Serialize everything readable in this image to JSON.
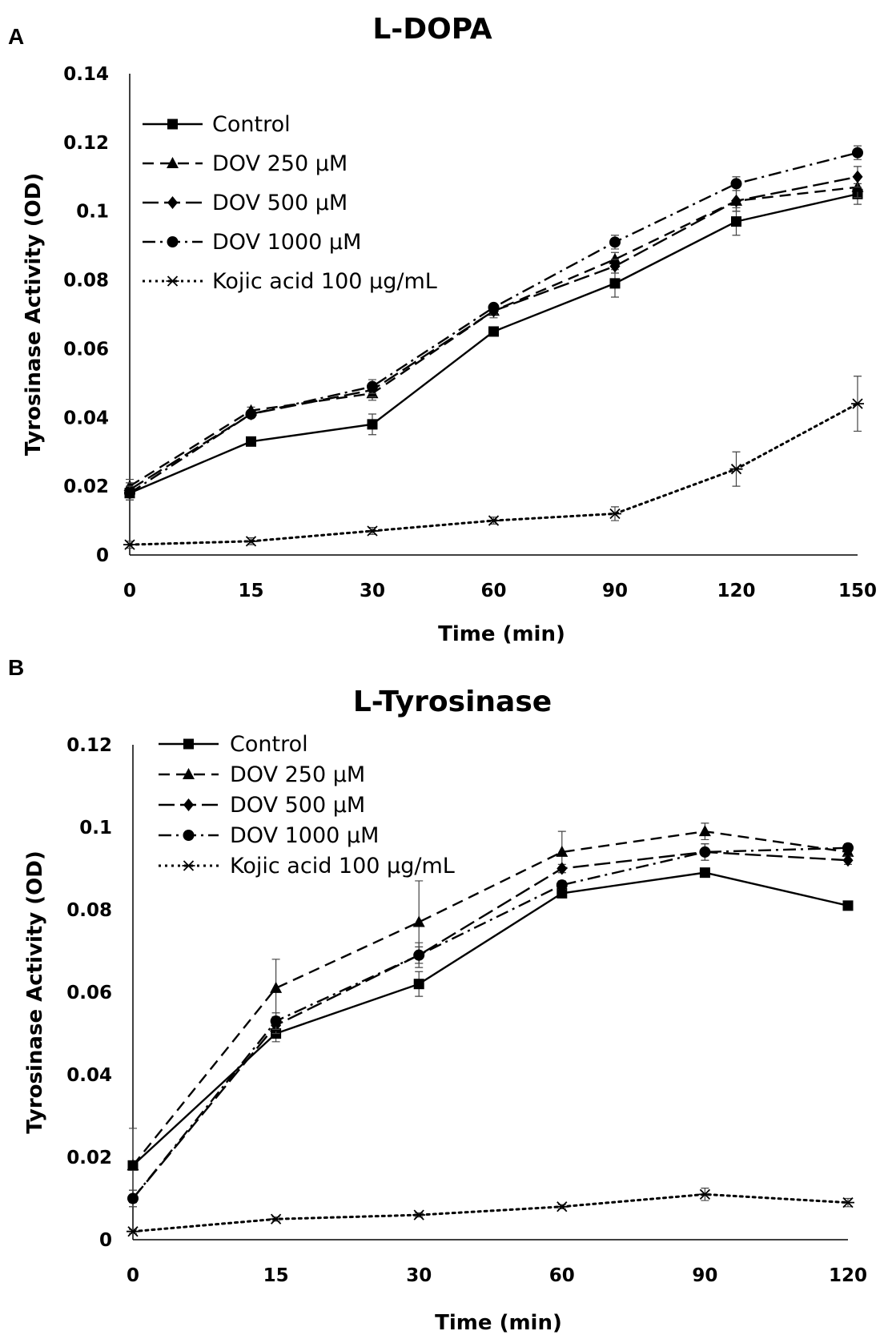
{
  "chart_data": [
    {
      "panel": "A",
      "type": "line",
      "title": "L-DOPA",
      "xlabel": "Time (min)",
      "ylabel": "Tyrosinase Activity (OD)",
      "categories": [
        "0",
        "15",
        "30",
        "60",
        "90",
        "120",
        "150"
      ],
      "ylim": [
        0,
        0.14
      ],
      "yticks": [
        "0",
        "0.02",
        "0.04",
        "0.06",
        "0.08",
        "0.1",
        "0.12",
        "0.14"
      ],
      "grid": false,
      "legend_position": "top-left",
      "series": [
        {
          "name": "Control",
          "values": [
            0.018,
            0.033,
            0.038,
            0.065,
            0.079,
            0.097,
            0.105
          ],
          "errors": [
            0.002,
            0.001,
            0.003,
            0.001,
            0.004,
            0.004,
            0.003
          ],
          "line": "solid",
          "marker": "square"
        },
        {
          "name": "DOV 250 μM",
          "values": [
            0.02,
            0.042,
            0.047,
            0.071,
            0.086,
            0.103,
            0.107
          ],
          "errors": [
            0.002,
            0.001,
            0.002,
            0.002,
            0.002,
            0.003,
            0.003
          ],
          "line": "dash",
          "marker": "triangle"
        },
        {
          "name": "DOV 500 μM",
          "values": [
            0.019,
            0.041,
            0.048,
            0.071,
            0.084,
            0.103,
            0.11
          ],
          "errors": [
            0.002,
            0.001,
            0.002,
            0.001,
            0.002,
            0.003,
            0.003
          ],
          "line": "longdash",
          "marker": "diamond"
        },
        {
          "name": "DOV 1000 μM",
          "values": [
            0.018,
            0.041,
            0.049,
            0.072,
            0.091,
            0.108,
            0.117
          ],
          "errors": [
            0.002,
            0.001,
            0.002,
            0.001,
            0.002,
            0.002,
            0.002
          ],
          "line": "dashdot",
          "marker": "circle"
        },
        {
          "name": "Kojic  acid  100 μg/mL",
          "values": [
            0.003,
            0.004,
            0.007,
            0.01,
            0.012,
            0.025,
            0.044
          ],
          "errors": [
            0.001,
            0.001,
            0.001,
            0.001,
            0.002,
            0.005,
            0.008
          ],
          "line": "dotted",
          "marker": "star"
        }
      ]
    },
    {
      "panel": "B",
      "type": "line",
      "title": "L-Tyrosinase",
      "xlabel": "Time (min)",
      "ylabel": "Tyrosinase Activity (OD)",
      "categories": [
        "0",
        "15",
        "30",
        "60",
        "90",
        "120"
      ],
      "ylim": [
        0,
        0.12
      ],
      "yticks": [
        "0",
        "0.02",
        "0.04",
        "0.06",
        "0.08",
        "0.1",
        "0.12"
      ],
      "grid": false,
      "legend_position": "top-left",
      "series": [
        {
          "name": "Control",
          "values": [
            0.018,
            0.05,
            0.062,
            0.084,
            0.089,
            0.081
          ],
          "errors": [
            0.001,
            0.002,
            0.003,
            0.001,
            0.001,
            0.001
          ],
          "line": "solid",
          "marker": "square"
        },
        {
          "name": "DOV 250 μM",
          "values": [
            0.018,
            0.061,
            0.077,
            0.094,
            0.099,
            0.094
          ],
          "errors": [
            0.009,
            0.007,
            0.01,
            0.005,
            0.002,
            0.002
          ],
          "line": "dash",
          "marker": "triangle"
        },
        {
          "name": "DOV 500 μM",
          "values": [
            0.01,
            0.052,
            0.069,
            0.09,
            0.094,
            0.092
          ],
          "errors": [
            0.002,
            0.002,
            0.003,
            0.001,
            0.002,
            0.001
          ],
          "line": "longdash",
          "marker": "diamond"
        },
        {
          "name": "DOV 1000 μM",
          "values": [
            0.01,
            0.053,
            0.069,
            0.086,
            0.094,
            0.095
          ],
          "errors": [
            0.002,
            0.002,
            0.002,
            0.001,
            0.002,
            0.001
          ],
          "line": "dashdot",
          "marker": "circle"
        },
        {
          "name": "Kojic  acid  100 μg/mL",
          "values": [
            0.002,
            0.005,
            0.006,
            0.008,
            0.011,
            0.009
          ],
          "errors": [
            0.0005,
            0.0005,
            0.0005,
            0.0005,
            0.0015,
            0.001
          ],
          "line": "dotted",
          "marker": "star"
        }
      ]
    }
  ]
}
